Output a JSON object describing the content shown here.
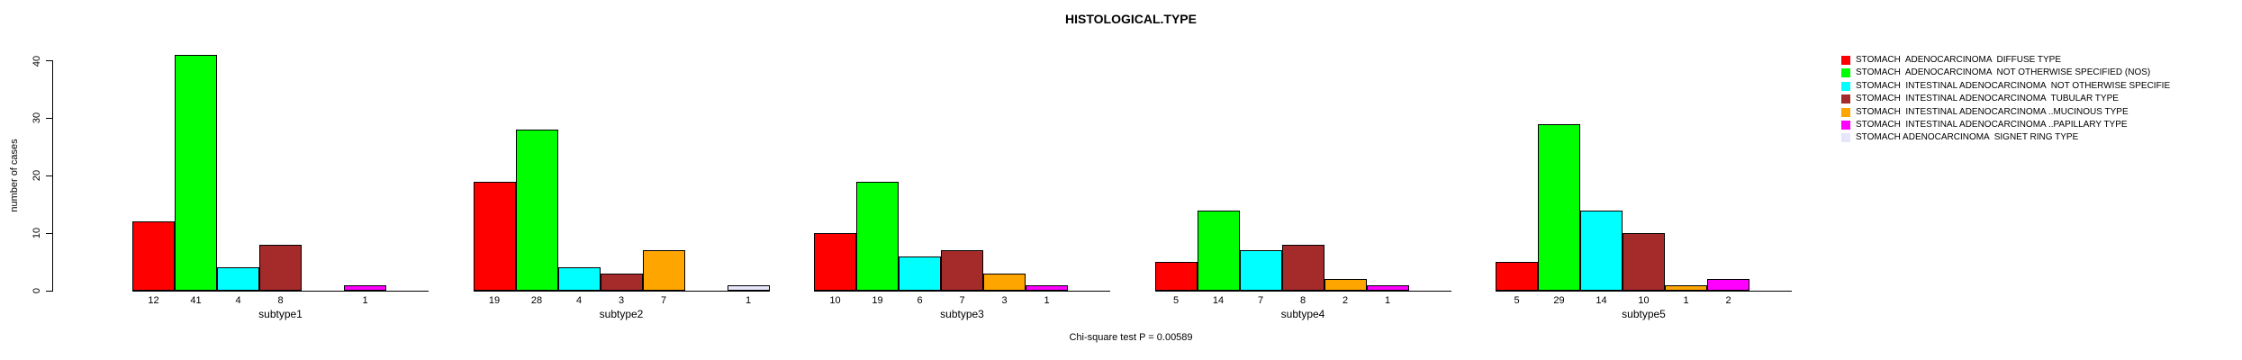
{
  "chart_data": {
    "type": "bar",
    "title": "HISTOLOGICAL.TYPE",
    "ylabel": "number of cases",
    "xlabel": "",
    "ylim": [
      0,
      40
    ],
    "yticks": [
      0,
      10,
      20,
      30,
      40
    ],
    "grid": false,
    "legend_position": "right",
    "footnote": "Chi-square test P = 0.00589",
    "series_names": [
      "STOMACH  ADENOCARCINOMA  DIFFUSE TYPE",
      "STOMACH  ADENOCARCINOMA  NOT OTHERWISE SPECIFIED (NOS)",
      "STOMACH  INTESTINAL ADENOCARCINOMA  NOT OTHERWISE SPECIFIE",
      "STOMACH  INTESTINAL ADENOCARCINOMA  TUBULAR TYPE",
      "STOMACH  INTESTINAL ADENOCARCINOMA ..MUCINOUS TYPE",
      "STOMACH  INTESTINAL ADENOCARCINOMA ..PAPILLARY TYPE",
      "STOMACH ADENOCARCINOMA  SIGNET RING TYPE"
    ],
    "series_colors": [
      "#FF0000",
      "#00FF00",
      "#00FFFF",
      "#A52A2A",
      "#FFA500",
      "#FF00FF",
      "#E6E6FA"
    ],
    "groups": [
      {
        "label": "subtype1",
        "values": [
          12,
          41,
          4,
          8,
          0,
          1,
          0
        ]
      },
      {
        "label": "subtype2",
        "values": [
          19,
          28,
          4,
          3,
          7,
          0,
          1
        ]
      },
      {
        "label": "subtype3",
        "values": [
          10,
          19,
          6,
          7,
          3,
          1,
          0
        ]
      },
      {
        "label": "subtype4",
        "values": [
          5,
          14,
          7,
          8,
          2,
          1,
          0
        ]
      },
      {
        "label": "subtype5",
        "values": [
          5,
          29,
          14,
          10,
          1,
          2,
          0
        ]
      }
    ]
  },
  "legend": {
    "entries": [
      {
        "label": "STOMACH  ADENOCARCINOMA  DIFFUSE TYPE",
        "color": "#FF0000"
      },
      {
        "label": "STOMACH  ADENOCARCINOMA  NOT OTHERWISE SPECIFIED (NOS)",
        "color": "#00FF00"
      },
      {
        "label": "STOMACH  INTESTINAL ADENOCARCINOMA  NOT OTHERWISE SPECIFIE",
        "color": "#00FFFF"
      },
      {
        "label": "STOMACH  INTESTINAL ADENOCARCINOMA  TUBULAR TYPE",
        "color": "#A52A2A"
      },
      {
        "label": "STOMACH  INTESTINAL ADENOCARCINOMA ..MUCINOUS TYPE",
        "color": "#FFA500"
      },
      {
        "label": "STOMACH  INTESTINAL ADENOCARCINOMA ..PAPILLARY TYPE",
        "color": "#FF00FF"
      },
      {
        "label": "STOMACH ADENOCARCINOMA  SIGNET RING TYPE",
        "color": "#E6E6FA"
      }
    ]
  }
}
